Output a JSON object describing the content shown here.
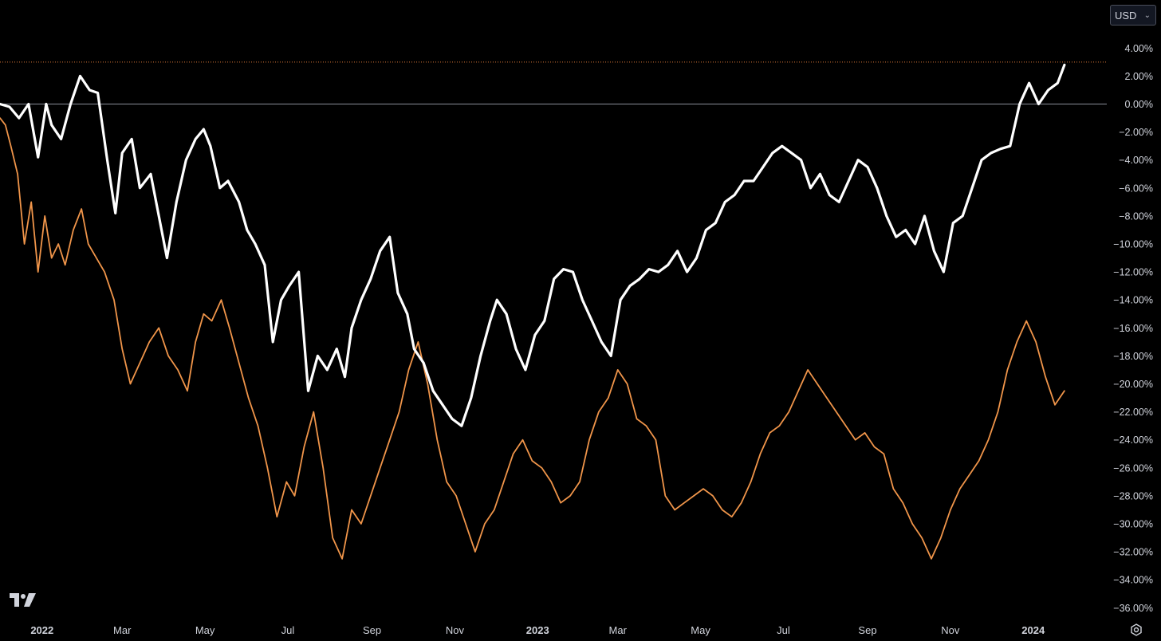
{
  "toolbar": {
    "currency_label": "USD",
    "currency_icon": "chevron-down-icon"
  },
  "footer": {
    "settings_icon": "gear-icon",
    "logo_icon": "tradingview-logo-icon"
  },
  "chart_data": {
    "type": "line",
    "x_range": [
      "2021-12-01",
      "2024-01-31"
    ],
    "ylim": [
      -37,
      5
    ],
    "y_unit": "%",
    "y_scale": "linear",
    "grid": false,
    "legend": "none",
    "y_ticks": [
      "4.00%",
      "2.00%",
      "0.00%",
      "−2.00%",
      "−4.00%",
      "−6.00%",
      "−8.00%",
      "−10.00%",
      "−12.00%",
      "−14.00%",
      "−16.00%",
      "−18.00%",
      "−20.00%",
      "−22.00%",
      "−24.00%",
      "−26.00%",
      "−28.00%",
      "−30.00%",
      "−32.00%",
      "−34.00%",
      "−36.00%"
    ],
    "y_tick_values": [
      4,
      2,
      0,
      -2,
      -4,
      -6,
      -8,
      -10,
      -12,
      -14,
      -16,
      -18,
      -20,
      -22,
      -24,
      -26,
      -28,
      -30,
      -32,
      -34,
      -36
    ],
    "x_ticks": [
      {
        "label": "2022",
        "date": "2022-01-01",
        "bold": true
      },
      {
        "label": "Mar",
        "date": "2022-03-01"
      },
      {
        "label": "May",
        "date": "2022-05-01"
      },
      {
        "label": "Jul",
        "date": "2022-07-01"
      },
      {
        "label": "Sep",
        "date": "2022-09-01"
      },
      {
        "label": "Nov",
        "date": "2022-11-01"
      },
      {
        "label": "2023",
        "date": "2023-01-01",
        "bold": true
      },
      {
        "label": "Mar",
        "date": "2023-03-01"
      },
      {
        "label": "May",
        "date": "2023-05-01"
      },
      {
        "label": "Jul",
        "date": "2023-07-01"
      },
      {
        "label": "Sep",
        "date": "2023-09-01"
      },
      {
        "label": "Nov",
        "date": "2023-11-01"
      },
      {
        "label": "2024",
        "date": "2024-01-01",
        "bold": true
      }
    ],
    "reference_lines": [
      {
        "y": 0,
        "color": "#8a8e99",
        "style": "solid"
      },
      {
        "y": 3.0,
        "color": "#e07a3a",
        "style": "dotted"
      }
    ],
    "series": [
      {
        "color": "#ffffff",
        "x": [
          "2021-12-01",
          "2021-12-08",
          "2021-12-15",
          "2021-12-22",
          "2021-12-29",
          "2022-01-04",
          "2022-01-08",
          "2022-01-15",
          "2022-01-22",
          "2022-01-29",
          "2022-02-05",
          "2022-02-11",
          "2022-02-18",
          "2022-02-24",
          "2022-03-01",
          "2022-03-08",
          "2022-03-14",
          "2022-03-22",
          "2022-03-29",
          "2022-04-03",
          "2022-04-10",
          "2022-04-17",
          "2022-04-24",
          "2022-04-30",
          "2022-05-05",
          "2022-05-12",
          "2022-05-18",
          "2022-05-26",
          "2022-06-01",
          "2022-06-07",
          "2022-06-14",
          "2022-06-20",
          "2022-06-26",
          "2022-07-02",
          "2022-07-09",
          "2022-07-16",
          "2022-07-23",
          "2022-07-30",
          "2022-08-06",
          "2022-08-12",
          "2022-08-17",
          "2022-08-24",
          "2022-08-31",
          "2022-09-07",
          "2022-09-14",
          "2022-09-20",
          "2022-09-27",
          "2022-10-02",
          "2022-10-09",
          "2022-10-16",
          "2022-10-23",
          "2022-10-30",
          "2022-11-06",
          "2022-11-13",
          "2022-11-20",
          "2022-11-27",
          "2022-12-02",
          "2022-12-09",
          "2022-12-16",
          "2022-12-23",
          "2022-12-30",
          "2023-01-06",
          "2023-01-13",
          "2023-01-20",
          "2023-01-27",
          "2023-02-03",
          "2023-02-10",
          "2023-02-17",
          "2023-02-24",
          "2023-03-03",
          "2023-03-10",
          "2023-03-17",
          "2023-03-24",
          "2023-03-31",
          "2023-04-07",
          "2023-04-14",
          "2023-04-21",
          "2023-04-28",
          "2023-05-05",
          "2023-05-12",
          "2023-05-19",
          "2023-05-26",
          "2023-06-02",
          "2023-06-09",
          "2023-06-16",
          "2023-06-23",
          "2023-06-30",
          "2023-07-07",
          "2023-07-14",
          "2023-07-21",
          "2023-07-28",
          "2023-08-04",
          "2023-08-11",
          "2023-08-18",
          "2023-08-25",
          "2023-09-01",
          "2023-09-08",
          "2023-09-15",
          "2023-09-22",
          "2023-09-29",
          "2023-10-06",
          "2023-10-13",
          "2023-10-20",
          "2023-10-27",
          "2023-11-03",
          "2023-11-10",
          "2023-11-17",
          "2023-11-24",
          "2023-12-01",
          "2023-12-08",
          "2023-12-15",
          "2023-12-22",
          "2023-12-29",
          "2024-01-05",
          "2024-01-12",
          "2024-01-19",
          "2024-01-24"
        ],
        "y": [
          0.0,
          -0.2,
          -1.0,
          0.0,
          -3.8,
          0.0,
          -1.5,
          -2.5,
          0.0,
          2.0,
          1.0,
          0.8,
          -4.0,
          -7.8,
          -3.5,
          -2.5,
          -6.0,
          -5.0,
          -8.5,
          -11.0,
          -7.0,
          -4.0,
          -2.5,
          -1.8,
          -3.0,
          -6.0,
          -5.5,
          -7.0,
          -9.0,
          -10.0,
          -11.5,
          -17.0,
          -14.0,
          -13.0,
          -12.0,
          -20.5,
          -18.0,
          -19.0,
          -17.5,
          -19.5,
          -16.0,
          -14.0,
          -12.5,
          -10.5,
          -9.5,
          -13.5,
          -15.0,
          -17.5,
          -18.5,
          -20.5,
          -21.5,
          -22.5,
          -23.0,
          -21.0,
          -18.0,
          -15.5,
          -14.0,
          -15.0,
          -17.5,
          -19.0,
          -16.5,
          -15.5,
          -12.5,
          -11.8,
          -12.0,
          -14.0,
          -15.5,
          -17.0,
          -18.0,
          -14.0,
          -13.0,
          -12.5,
          -11.8,
          -12.0,
          -11.5,
          -10.5,
          -12.0,
          -11.0,
          -9.0,
          -8.5,
          -7.0,
          -6.5,
          -5.5,
          -5.5,
          -4.5,
          -3.5,
          -3.0,
          -3.5,
          -4.0,
          -6.0,
          -5.0,
          -6.5,
          -7.0,
          -5.5,
          -4.0,
          -4.5,
          -6.0,
          -8.0,
          -9.5,
          -9.0,
          -10.0,
          -8.0,
          -10.5,
          -12.0,
          -8.5,
          -8.0,
          -6.0,
          -4.0,
          -3.5,
          -3.2,
          -3.0,
          0.0,
          1.5,
          0.0,
          1.0,
          1.5,
          2.8
        ]
      },
      {
        "color": "#f0954a",
        "x": [
          "2021-12-01",
          "2021-12-05",
          "2021-12-09",
          "2021-12-14",
          "2021-12-19",
          "2021-12-24",
          "2021-12-29",
          "2022-01-03",
          "2022-01-08",
          "2022-01-13",
          "2022-01-18",
          "2022-01-24",
          "2022-01-30",
          "2022-02-04",
          "2022-02-10",
          "2022-02-16",
          "2022-02-23",
          "2022-03-01",
          "2022-03-07",
          "2022-03-14",
          "2022-03-21",
          "2022-03-28",
          "2022-04-04",
          "2022-04-11",
          "2022-04-18",
          "2022-04-24",
          "2022-04-30",
          "2022-05-06",
          "2022-05-13",
          "2022-05-19",
          "2022-05-26",
          "2022-06-02",
          "2022-06-09",
          "2022-06-16",
          "2022-06-23",
          "2022-06-30",
          "2022-07-06",
          "2022-07-13",
          "2022-07-20",
          "2022-07-27",
          "2022-08-03",
          "2022-08-10",
          "2022-08-17",
          "2022-08-24",
          "2022-08-31",
          "2022-09-07",
          "2022-09-14",
          "2022-09-21",
          "2022-09-28",
          "2022-10-05",
          "2022-10-12",
          "2022-10-19",
          "2022-10-26",
          "2022-11-02",
          "2022-11-09",
          "2022-11-16",
          "2022-11-23",
          "2022-11-30",
          "2022-12-07",
          "2022-12-14",
          "2022-12-21",
          "2022-12-28",
          "2023-01-04",
          "2023-01-11",
          "2023-01-18",
          "2023-01-25",
          "2023-02-01",
          "2023-02-08",
          "2023-02-15",
          "2023-02-22",
          "2023-03-01",
          "2023-03-08",
          "2023-03-15",
          "2023-03-22",
          "2023-03-29",
          "2023-04-05",
          "2023-04-12",
          "2023-04-19",
          "2023-04-26",
          "2023-05-03",
          "2023-05-10",
          "2023-05-17",
          "2023-05-24",
          "2023-05-31",
          "2023-06-07",
          "2023-06-14",
          "2023-06-21",
          "2023-06-28",
          "2023-07-05",
          "2023-07-12",
          "2023-07-19",
          "2023-07-26",
          "2023-08-02",
          "2023-08-09",
          "2023-08-16",
          "2023-08-23",
          "2023-08-30",
          "2023-09-06",
          "2023-09-13",
          "2023-09-20",
          "2023-09-27",
          "2023-10-04",
          "2023-10-11",
          "2023-10-18",
          "2023-10-25",
          "2023-11-01",
          "2023-11-08",
          "2023-11-15",
          "2023-11-22",
          "2023-11-29",
          "2023-12-06",
          "2023-12-13",
          "2023-12-20",
          "2023-12-27",
          "2024-01-03",
          "2024-01-10",
          "2024-01-17",
          "2024-01-24"
        ],
        "y": [
          -1.0,
          -1.5,
          -3.0,
          -5.0,
          -10.0,
          -7.0,
          -12.0,
          -8.0,
          -11.0,
          -10.0,
          -11.5,
          -9.0,
          -7.5,
          -10.0,
          -11.0,
          -12.0,
          -14.0,
          -17.5,
          -20.0,
          -18.5,
          -17.0,
          -16.0,
          -18.0,
          -19.0,
          -20.5,
          -17.0,
          -15.0,
          -15.5,
          -14.0,
          -16.0,
          -18.5,
          -21.0,
          -23.0,
          -26.0,
          -29.5,
          -27.0,
          -28.0,
          -24.5,
          -22.0,
          -26.0,
          -31.0,
          -32.5,
          -29.0,
          -30.0,
          -28.0,
          -26.0,
          -24.0,
          -22.0,
          -19.0,
          -17.0,
          -20.0,
          -24.0,
          -27.0,
          -28.0,
          -30.0,
          -32.0,
          -30.0,
          -29.0,
          -27.0,
          -25.0,
          -24.0,
          -25.5,
          -26.0,
          -27.0,
          -28.5,
          -28.0,
          -27.0,
          -24.0,
          -22.0,
          -21.0,
          -19.0,
          -20.0,
          -22.5,
          -23.0,
          -24.0,
          -28.0,
          -29.0,
          -28.5,
          -28.0,
          -27.5,
          -28.0,
          -29.0,
          -29.5,
          -28.5,
          -27.0,
          -25.0,
          -23.5,
          -23.0,
          -22.0,
          -20.5,
          -19.0,
          -20.0,
          -21.0,
          -22.0,
          -23.0,
          -24.0,
          -23.5,
          -24.5,
          -25.0,
          -27.5,
          -28.5,
          -30.0,
          -31.0,
          -32.5,
          -31.0,
          -29.0,
          -27.5,
          -26.5,
          -25.5,
          -24.0,
          -22.0,
          -19.0,
          -17.0,
          -15.5,
          -17.0,
          -19.5,
          -21.5,
          -20.5
        ]
      }
    ]
  }
}
